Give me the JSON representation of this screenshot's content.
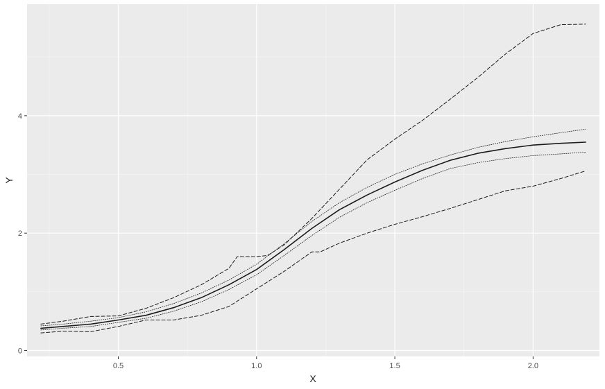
{
  "chart_data": {
    "type": "line",
    "title": "",
    "xlabel": "X",
    "ylabel": "Y",
    "xlim": [
      0.17,
      2.24
    ],
    "ylim": [
      -0.1,
      5.9
    ],
    "grid": true,
    "legend": "none",
    "x_ticks": [
      0.5,
      1.0,
      1.5,
      2.0
    ],
    "x_tick_labels": [
      "0.5",
      "1.0",
      "1.5",
      "2.0"
    ],
    "y_ticks": [
      0,
      2,
      4
    ],
    "y_tick_labels": [
      "0",
      "2",
      "4"
    ],
    "series": [
      {
        "style": "solid",
        "x": [
          0.22,
          0.3,
          0.4,
          0.5,
          0.6,
          0.7,
          0.8,
          0.9,
          1.0,
          1.1,
          1.2,
          1.3,
          1.4,
          1.5,
          1.6,
          1.7,
          1.8,
          1.9,
          2.0,
          2.1,
          2.19
        ],
        "y": [
          0.38,
          0.41,
          0.45,
          0.52,
          0.6,
          0.73,
          0.9,
          1.12,
          1.38,
          1.72,
          2.08,
          2.4,
          2.65,
          2.87,
          3.07,
          3.24,
          3.36,
          3.44,
          3.5,
          3.53,
          3.55
        ]
      },
      {
        "style": "dotted",
        "x": [
          0.22,
          0.3,
          0.4,
          0.5,
          0.6,
          0.7,
          0.8,
          0.9,
          1.0,
          1.1,
          1.2,
          1.3,
          1.4,
          1.5,
          1.6,
          1.7,
          1.8,
          1.9,
          2.0,
          2.1,
          2.19
        ],
        "y": [
          0.42,
          0.45,
          0.5,
          0.56,
          0.66,
          0.8,
          0.98,
          1.2,
          1.47,
          1.82,
          2.2,
          2.52,
          2.78,
          3.0,
          3.18,
          3.33,
          3.46,
          3.56,
          3.64,
          3.71,
          3.77
        ]
      },
      {
        "style": "dotted",
        "x": [
          0.22,
          0.3,
          0.4,
          0.5,
          0.6,
          0.7,
          0.8,
          0.9,
          1.0,
          1.1,
          1.2,
          1.3,
          1.4,
          1.5,
          1.6,
          1.7,
          1.8,
          1.9,
          2.0,
          2.1,
          2.19
        ],
        "y": [
          0.35,
          0.38,
          0.41,
          0.48,
          0.55,
          0.67,
          0.83,
          1.04,
          1.29,
          1.62,
          1.96,
          2.27,
          2.52,
          2.73,
          2.93,
          3.1,
          3.2,
          3.27,
          3.32,
          3.35,
          3.38
        ]
      },
      {
        "style": "dashed",
        "x": [
          0.22,
          0.3,
          0.4,
          0.5,
          0.6,
          0.7,
          0.8,
          0.9,
          0.93,
          1.0,
          1.04,
          1.1,
          1.2,
          1.3,
          1.4,
          1.5,
          1.6,
          1.7,
          1.8,
          1.9,
          2.0,
          2.1,
          2.19
        ],
        "y": [
          0.45,
          0.5,
          0.58,
          0.59,
          0.72,
          0.9,
          1.12,
          1.4,
          1.6,
          1.6,
          1.62,
          1.8,
          2.25,
          2.75,
          3.25,
          3.6,
          3.92,
          4.28,
          4.65,
          5.05,
          5.4,
          5.55,
          5.56
        ]
      },
      {
        "style": "dashed",
        "x": [
          0.22,
          0.3,
          0.4,
          0.5,
          0.6,
          0.7,
          0.8,
          0.9,
          1.0,
          1.1,
          1.2,
          1.23,
          1.3,
          1.4,
          1.5,
          1.6,
          1.7,
          1.8,
          1.9,
          2.0,
          2.1,
          2.19
        ],
        "y": [
          0.3,
          0.33,
          0.32,
          0.41,
          0.52,
          0.52,
          0.6,
          0.75,
          1.05,
          1.35,
          1.68,
          1.68,
          1.83,
          2.0,
          2.15,
          2.28,
          2.42,
          2.57,
          2.72,
          2.8,
          2.93,
          3.06
        ]
      }
    ]
  }
}
